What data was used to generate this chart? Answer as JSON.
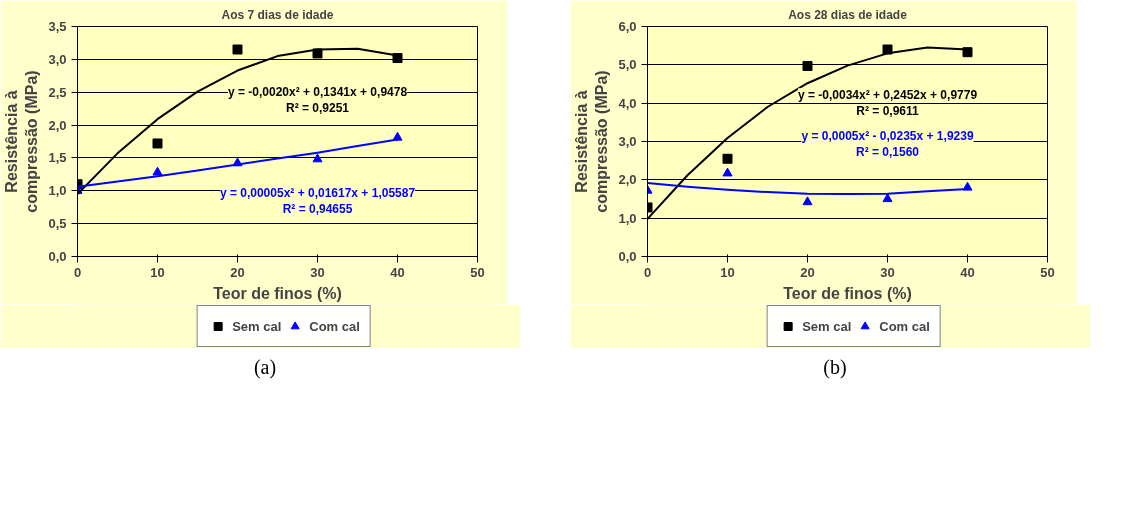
{
  "chart_data": [
    {
      "type": "scatter",
      "title": "Aos 7 dias de idade",
      "xlabel": "Teor de finos (%)",
      "ylabel": "Resistência à\ncompressão (MPa)",
      "x": [
        0,
        10,
        20,
        30,
        40
      ],
      "series": [
        {
          "name": "Sem cal",
          "color": "#000000",
          "marker": "square",
          "values": [
            1.1,
            1.72,
            3.15,
            3.09,
            3.02
          ]
        },
        {
          "name": "Com cal",
          "color": "#0000ff",
          "marker": "triangle",
          "values": [
            1.0,
            1.28,
            1.42,
            1.48,
            1.81
          ]
        },
        {
          "type": "line",
          "color": "#000000",
          "x": [
            0,
            5,
            10,
            15,
            20,
            25,
            30,
            35,
            40
          ],
          "values": [
            0.95,
            1.57,
            2.09,
            2.51,
            2.83,
            3.05,
            3.15,
            3.16,
            3.06
          ]
        },
        {
          "type": "line",
          "color": "#0000ff",
          "x": [
            0,
            5,
            10,
            15,
            20,
            25,
            30,
            35,
            40
          ],
          "values": [
            1.06,
            1.14,
            1.22,
            1.31,
            1.4,
            1.49,
            1.58,
            1.68,
            1.78
          ]
        }
      ],
      "xlim": [
        0,
        50
      ],
      "xticks": [
        0,
        10,
        20,
        30,
        40,
        50
      ],
      "ylim": [
        0,
        3.5
      ],
      "yticks": [
        {
          "value": 0,
          "label": "0,0"
        },
        {
          "value": 0.5,
          "label": "0,5"
        },
        {
          "value": 1,
          "label": "1,0"
        },
        {
          "value": 1.5,
          "label": "1,5"
        },
        {
          "value": 2,
          "label": "2,0"
        },
        {
          "value": 2.5,
          "label": "2,5"
        },
        {
          "value": 3,
          "label": "3,0"
        },
        {
          "value": 3.5,
          "label": "3,5"
        }
      ],
      "grid": "y",
      "legend": "bottom",
      "annotations": [
        "y = -0,0020x² + 0,1341x + 0,9478",
        "R² = 0,9251",
        "y = 0,00005x² + 0,01617x + 1,05587",
        "R² = 0,94655",
        "(a)"
      ]
    },
    {
      "type": "scatter",
      "title": "Aos 28 dias de idade",
      "xlabel": "Teor de finos (%)",
      "ylabel": "Resistência à\ncompressão (MPa)",
      "x": [
        0,
        10,
        20,
        30,
        40
      ],
      "series": [
        {
          "name": "Sem cal",
          "color": "#000000",
          "marker": "square",
          "values": [
            1.28,
            2.55,
            4.97,
            5.4,
            5.33
          ]
        },
        {
          "name": "Com cal",
          "color": "#0000ff",
          "marker": "triangle",
          "values": [
            1.72,
            2.17,
            1.42,
            1.5,
            1.8
          ]
        },
        {
          "type": "line",
          "color": "#000000",
          "x": [
            0,
            5,
            10,
            15,
            20,
            25,
            30,
            35,
            40
          ],
          "values": [
            0.98,
            2.12,
            3.09,
            3.9,
            4.52,
            4.98,
            5.3,
            5.45,
            5.4
          ]
        },
        {
          "type": "line",
          "color": "#0000ff",
          "x": [
            0,
            5,
            10,
            15,
            20,
            25,
            30,
            35,
            40
          ],
          "values": [
            1.92,
            1.82,
            1.74,
            1.68,
            1.64,
            1.63,
            1.64,
            1.7,
            1.76
          ]
        }
      ],
      "xlim": [
        0,
        50
      ],
      "xticks": [
        0,
        10,
        20,
        30,
        40,
        50
      ],
      "ylim": [
        0,
        6
      ],
      "yticks": [
        {
          "value": 0,
          "label": "0,0"
        },
        {
          "value": 1,
          "label": "1,0"
        },
        {
          "value": 2,
          "label": "2,0"
        },
        {
          "value": 3,
          "label": "3,0"
        },
        {
          "value": 4,
          "label": "4,0"
        },
        {
          "value": 5,
          "label": "5,0"
        },
        {
          "value": 6,
          "label": "6,0"
        }
      ],
      "grid": "y",
      "legend": "bottom",
      "annotations": [
        "y = -0,0034x² + 0,2452x + 0,9779",
        "R² = 0,9611",
        "y = 0,0005x² - 0,0235x + 1,9239",
        "R² = 0,1560",
        "(b)"
      ]
    }
  ]
}
